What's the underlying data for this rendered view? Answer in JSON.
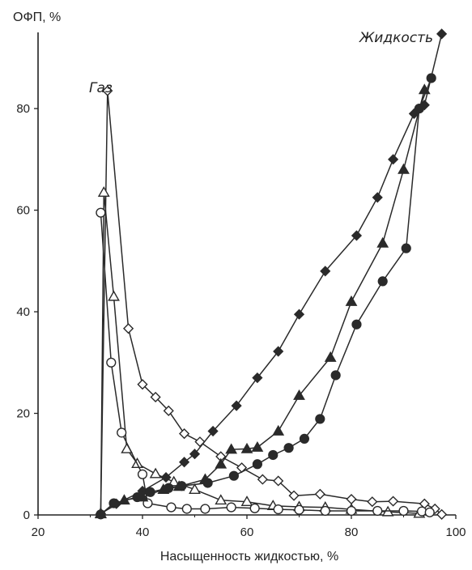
{
  "chart_data": {
    "type": "line",
    "title": "",
    "xlabel": "Насыщенность жидкостью, %",
    "ylabel": "ОФП, %",
    "xlim": [
      20,
      100
    ],
    "ylim": [
      0,
      95
    ],
    "xticks": [
      20,
      40,
      60,
      80,
      100
    ],
    "yticks": [
      0,
      20,
      40,
      60,
      80
    ],
    "grid": false,
    "annotations": [
      {
        "text": "Газ"
      },
      {
        "text": "Жидкость"
      }
    ],
    "series": [
      {
        "group": "gas",
        "marker": "open-diamond",
        "x": [
          32,
          33.3,
          37.3,
          40,
          42.5,
          45,
          48,
          51,
          55,
          59,
          63,
          66,
          69,
          74,
          80,
          84,
          88,
          94,
          96,
          97.3
        ],
        "y": [
          0.2,
          83.5,
          36.7,
          25.7,
          23.2,
          20.5,
          16,
          14.4,
          11.5,
          9.3,
          7,
          6.7,
          3.8,
          4.1,
          3.1,
          2.6,
          2.7,
          2.2,
          1.2,
          0.1
        ]
      },
      {
        "group": "gas",
        "marker": "open-triangle",
        "x": [
          32,
          32.6,
          34.5,
          37,
          39,
          42.5,
          46,
          50,
          55,
          60,
          65,
          70,
          75,
          80,
          87,
          93
        ],
        "y": [
          0.2,
          63.5,
          43,
          13,
          10.1,
          8.1,
          6.5,
          5,
          2.9,
          2.6,
          1.8,
          1.6,
          1.5,
          1.1,
          0.6,
          0.3
        ]
      },
      {
        "group": "gas",
        "marker": "open-circle",
        "x": [
          32,
          34,
          36,
          40,
          41,
          45.5,
          48.5,
          52,
          57,
          61.5,
          66,
          70,
          75,
          80,
          85,
          90,
          93.5,
          95
        ],
        "y": [
          59.5,
          30,
          16.2,
          8,
          2.3,
          1.5,
          1.2,
          1.2,
          1.5,
          1.3,
          1.1,
          1,
          0.8,
          0.8,
          0.8,
          0.8,
          0.7,
          0.5
        ]
      },
      {
        "group": "liquid",
        "marker": "filled-diamond",
        "x": [
          32,
          35,
          40,
          44.5,
          48,
          50,
          53.5,
          58,
          62,
          66,
          70,
          75,
          81,
          85,
          88,
          92,
          94,
          97.3
        ],
        "y": [
          0.2,
          2.2,
          4.7,
          7.4,
          10.4,
          12,
          16.5,
          21.5,
          27,
          32.2,
          39.5,
          48,
          55,
          62.5,
          70,
          79,
          80.7,
          94.7
        ]
      },
      {
        "group": "liquid",
        "marker": "filled-triangle",
        "x": [
          32,
          36.5,
          40,
          44,
          47,
          52,
          55,
          57,
          60,
          62,
          66,
          70,
          76,
          80,
          86,
          90,
          94
        ],
        "y": [
          0.3,
          2.9,
          3.5,
          5,
          5.6,
          7,
          10,
          12.9,
          13,
          13.3,
          16.5,
          23.5,
          31,
          42,
          53.5,
          68,
          83.7
        ]
      },
      {
        "group": "liquid",
        "marker": "filled-circle",
        "x": [
          32,
          34.5,
          39,
          41.5,
          45,
          47.5,
          52.5,
          57.5,
          62,
          65,
          68,
          71,
          74,
          77,
          81,
          86,
          90.5,
          93,
          95.3
        ],
        "y": [
          0.1,
          2.3,
          3.5,
          4.5,
          5.3,
          5.7,
          6.3,
          7.7,
          10,
          11.8,
          13.2,
          15,
          18.9,
          27.5,
          37.5,
          46,
          52.5,
          80,
          86
        ]
      }
    ]
  }
}
